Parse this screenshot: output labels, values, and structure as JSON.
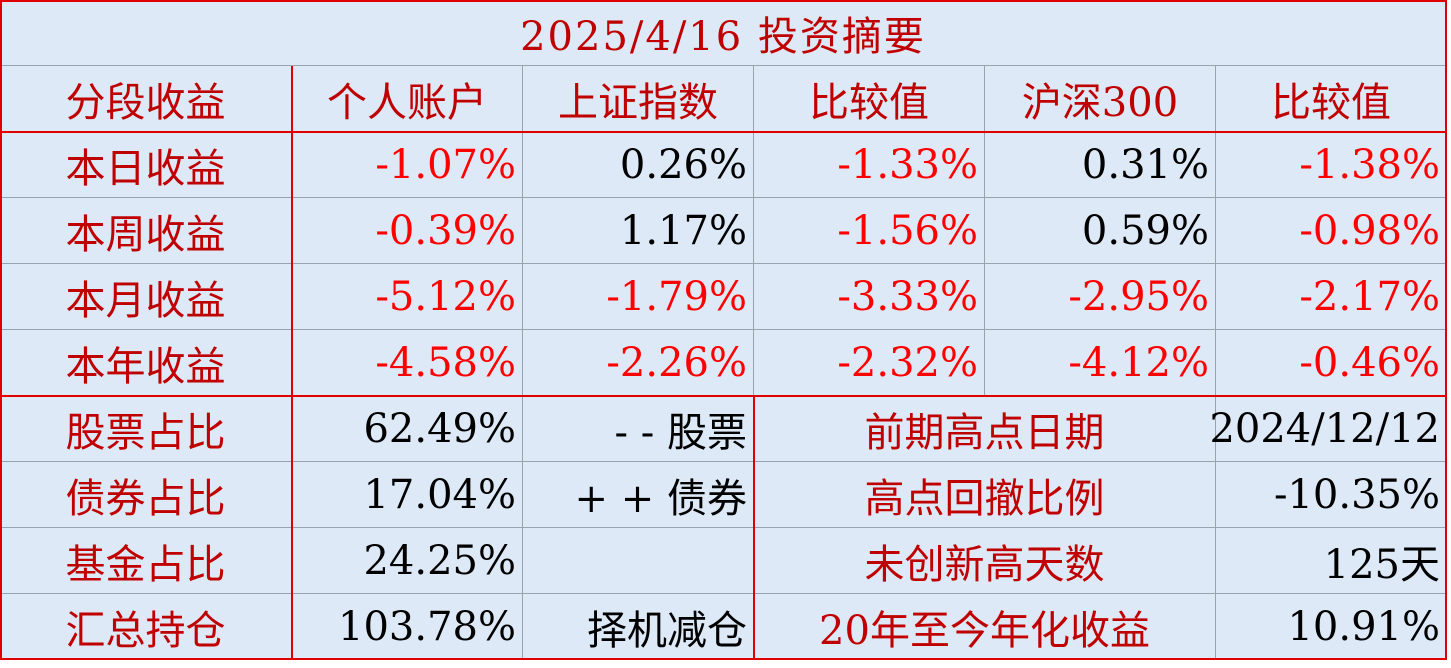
{
  "title": "2025/4/16 投资摘要",
  "header": [
    "分段收益",
    "个人账户",
    "上证指数",
    "比较值",
    "沪深300",
    "比较值"
  ],
  "returns": [
    [
      "本日收益",
      "-1.07%",
      "0.26%",
      "-1.33%",
      "0.31%",
      "-1.38%"
    ],
    [
      "本周收益",
      "-0.39%",
      "1.17%",
      "-1.56%",
      "0.59%",
      "-0.98%"
    ],
    [
      "本月收益",
      "-5.12%",
      "-1.79%",
      "-3.33%",
      "-2.95%",
      "-2.17%"
    ],
    [
      "本年收益",
      "-4.58%",
      "-2.26%",
      "-2.32%",
      "-4.12%",
      "-0.46%"
    ]
  ],
  "holdings": [
    {
      "label": "股票占比",
      "value": "62.49%",
      "note": "- - 股票",
      "metric": "前期高点日期",
      "metric_value": "2024/12/12"
    },
    {
      "label": "债券占比",
      "value": "17.04%",
      "note": "+ + 债券",
      "metric": "高点回撤比例",
      "metric_value": "-10.35%"
    },
    {
      "label": "基金占比",
      "value": "24.25%",
      "metric": "未创新高天数",
      "metric_value": "125天"
    },
    {
      "label": "汇总持仓",
      "value": "103.78%",
      "note": "择机减仓",
      "metric": "20年至今年化收益",
      "metric_value": "10.91%"
    }
  ]
}
